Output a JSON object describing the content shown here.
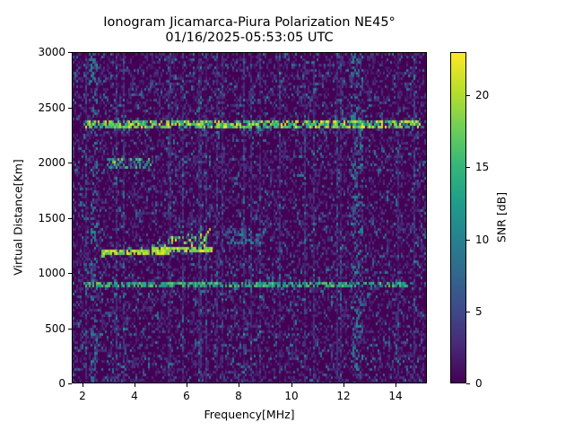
{
  "chart_data": {
    "type": "heatmap",
    "title": "Ionogram Jicamarca-Piura Polarization NE45°",
    "subtitle": "01/16/2025-05:53:05 UTC",
    "xlabel": "Frequency[MHz]",
    "ylabel": "Virtual Distance[Km]",
    "xlim": [
      1.6,
      15.2
    ],
    "ylim": [
      0,
      3000
    ],
    "xticks": [
      "2",
      "4",
      "6",
      "8",
      "10",
      "12",
      "14"
    ],
    "yticks": [
      "0",
      "500",
      "1000",
      "1500",
      "2000",
      "2500",
      "3000"
    ],
    "colorbar": {
      "label": "SNR [dB]",
      "range": [
        0,
        23
      ],
      "ticks": [
        "0",
        "5",
        "10",
        "15",
        "20"
      ],
      "colormap": "viridis"
    },
    "grid": false,
    "features": [
      {
        "name": "F-layer trace",
        "freq_range_mhz": [
          2.7,
          7.0
        ],
        "distance_km": [
          1170,
          1350
        ],
        "snr_db_max": 23
      },
      {
        "name": "second-hop echo",
        "freq_range_mhz": [
          2.9,
          4.7
        ],
        "distance_km": [
          1950,
          2050
        ],
        "snr_db_max": 20
      },
      {
        "name": "faint echo",
        "freq_range_mhz": [
          7.5,
          9.0
        ],
        "distance_km": [
          1250,
          1400
        ],
        "snr_db_max": 12
      },
      {
        "name": "horizontal interference line",
        "freq_range_mhz": [
          2.0,
          15.0
        ],
        "distance_km": [
          2350,
          2350
        ],
        "snr_db_max": 23
      },
      {
        "name": "horizontal interference line",
        "freq_range_mhz": [
          2.0,
          14.5
        ],
        "distance_km": [
          900,
          900
        ],
        "snr_db_max": 18
      },
      {
        "name": "vertical noise band",
        "freq_range_mhz": [
          12.3,
          12.8
        ],
        "distance_km": [
          0,
          3000
        ],
        "snr_db_max": 12
      },
      {
        "name": "vertical noise band",
        "freq_range_mhz": [
          2.3,
          2.6
        ],
        "distance_km": [
          0,
          3000
        ],
        "snr_db_max": 12
      }
    ]
  },
  "figure": {
    "title_line1": "Ionogram Jicamarca-Piura Polarization NE45°",
    "title_line2": "01/16/2025-05:53:05 UTC",
    "xlabel": "Frequency[MHz]",
    "ylabel": "Virtual Distance[Km]",
    "cbar_label": "SNR [dB]"
  }
}
